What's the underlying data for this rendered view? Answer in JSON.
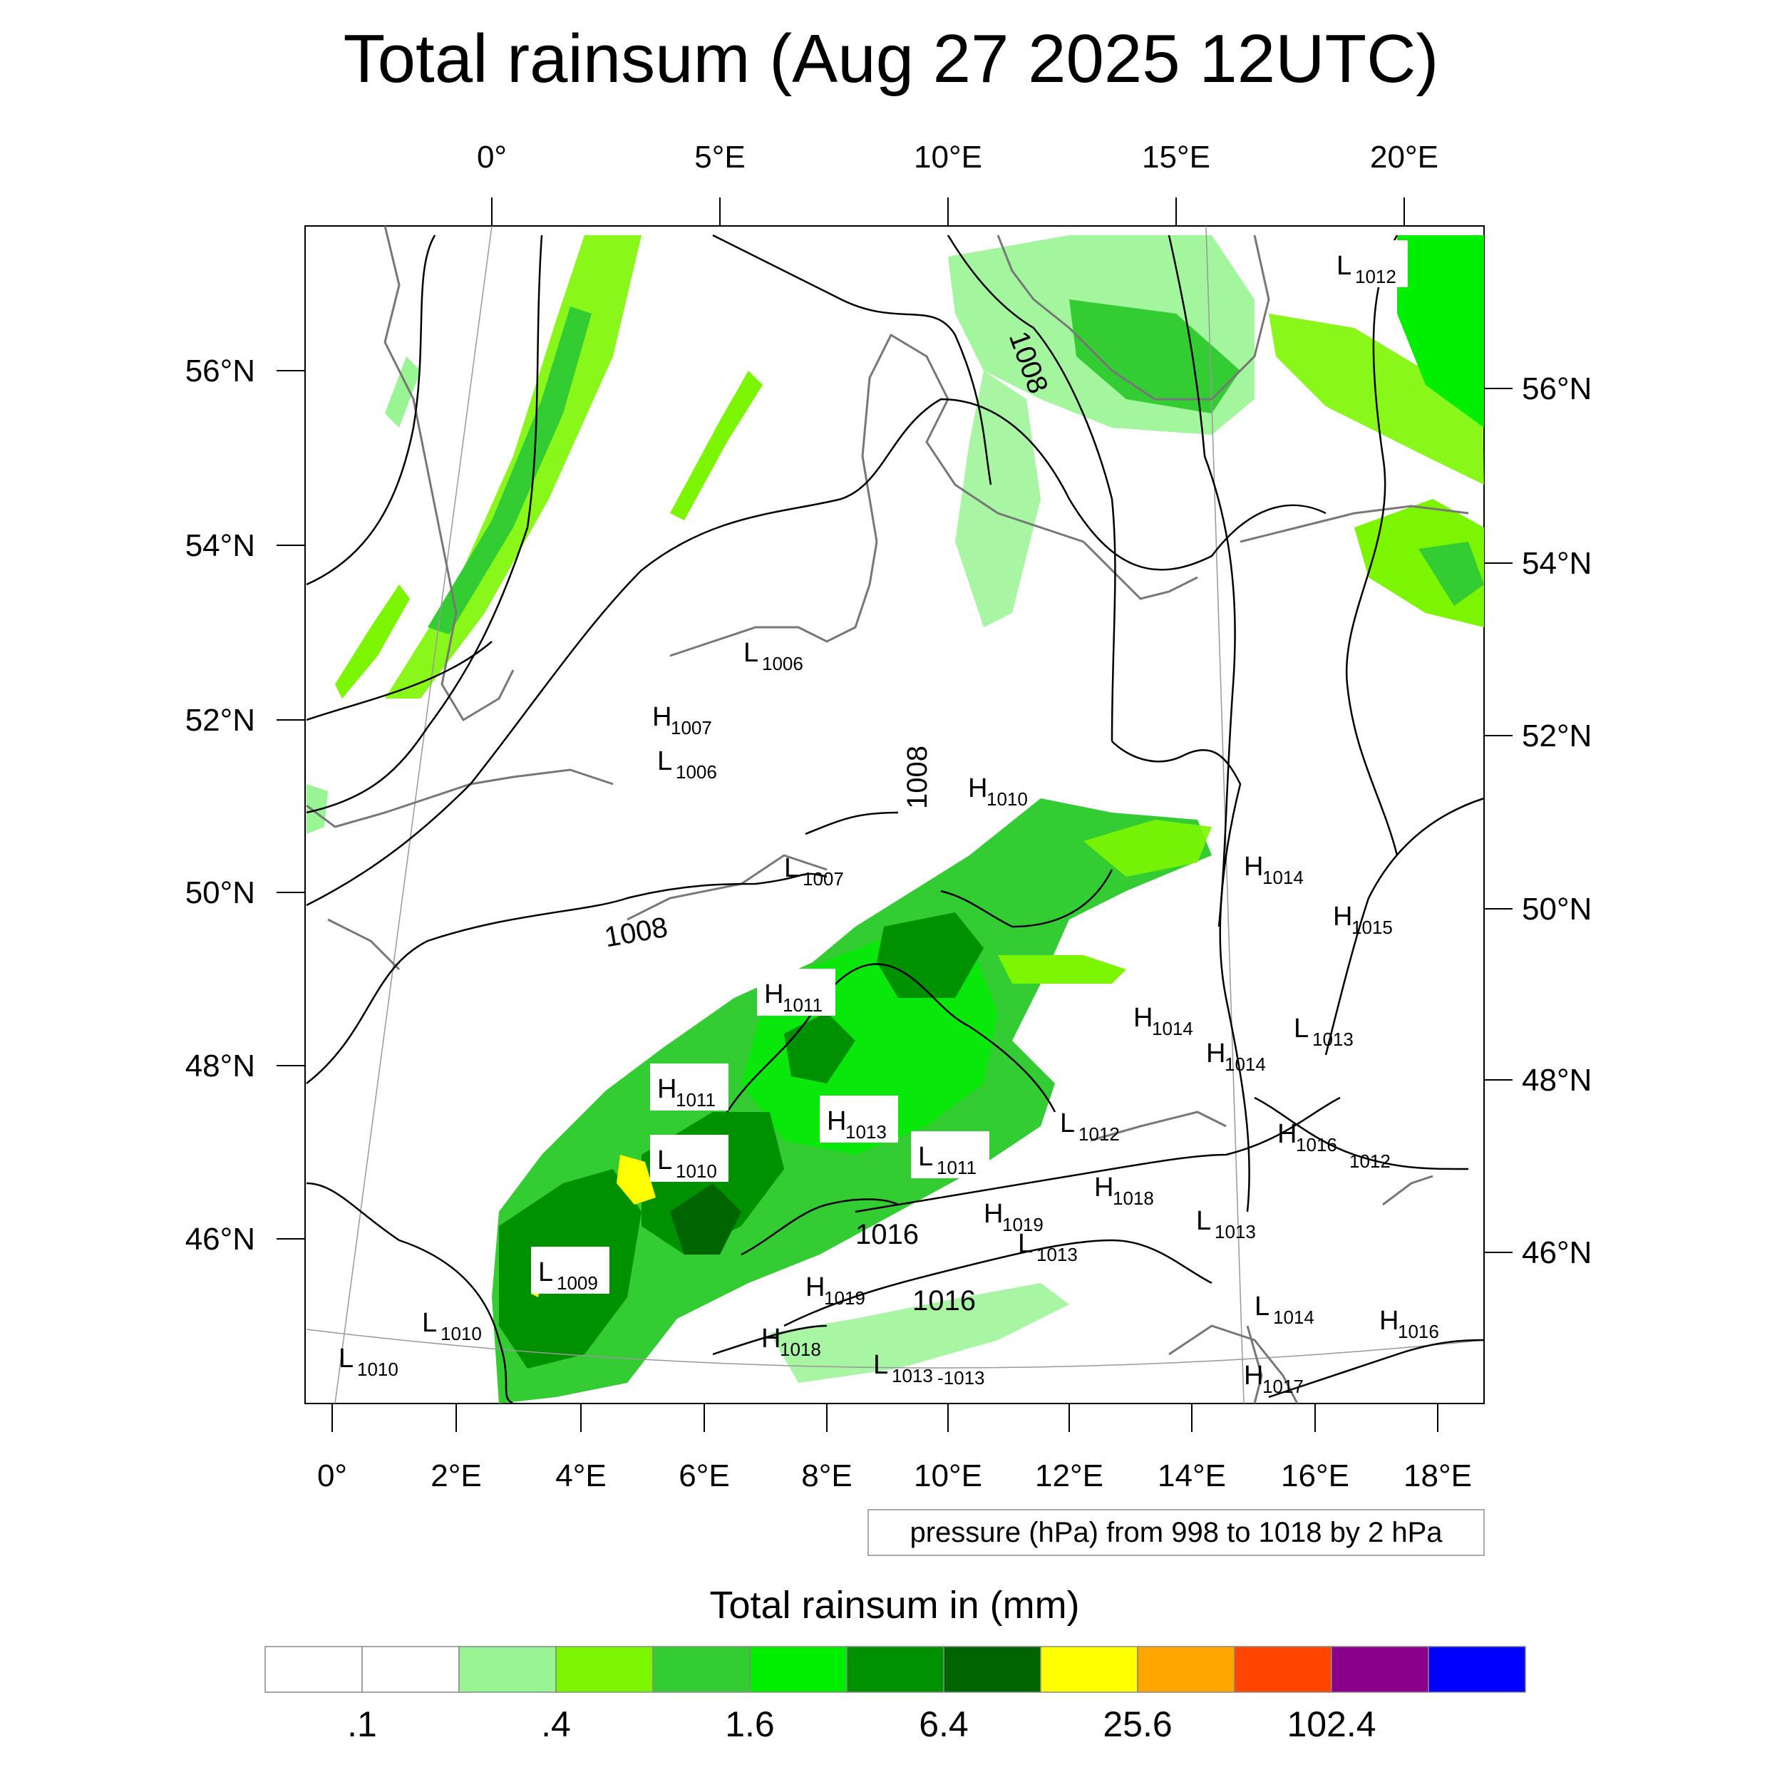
{
  "title": "Total rainsum (Aug 27 2025 12UTC)",
  "map": {
    "region": "Western and Central Europe",
    "projection": "conic",
    "top_lon_labels": [
      "0°",
      "5°E",
      "10°E",
      "15°E",
      "20°E"
    ],
    "bottom_lon_labels": [
      "0°",
      "2°E",
      "4°E",
      "6°E",
      "8°E",
      "10°E",
      "12°E",
      "14°E",
      "16°E",
      "18°E"
    ],
    "left_lat_labels": [
      "56°N",
      "54°N",
      "52°N",
      "50°N",
      "48°N",
      "46°N"
    ],
    "right_lat_labels": [
      "56°N",
      "54°N",
      "52°N",
      "50°N",
      "48°N",
      "46°N"
    ]
  },
  "pressure_centers": [
    {
      "type": "L",
      "value": "1012"
    },
    {
      "type": "L",
      "value": "1006"
    },
    {
      "type": "H",
      "value": "1007"
    },
    {
      "type": "L",
      "value": "1006"
    },
    {
      "type": "H",
      "value": "1010"
    },
    {
      "type": "L",
      "value": "1007"
    },
    {
      "type": "H",
      "value": "1014"
    },
    {
      "type": "H",
      "value": "1015"
    },
    {
      "type": "H",
      "value": "1011"
    },
    {
      "type": "H",
      "value": "1014"
    },
    {
      "type": "H",
      "value": "1014"
    },
    {
      "type": "L",
      "value": "1013"
    },
    {
      "type": "H",
      "value": "1011"
    },
    {
      "type": "H",
      "value": "1013"
    },
    {
      "type": "L",
      "value": "1012"
    },
    {
      "type": "L",
      "value": "1010"
    },
    {
      "type": "L",
      "value": "1011"
    },
    {
      "type": "H",
      "value": "1016"
    },
    {
      "type": "H",
      "value": "1018"
    },
    {
      "type": "H",
      "value": "1019"
    },
    {
      "type": "L",
      "value": "1013"
    },
    {
      "type": "L",
      "value": "1013"
    },
    {
      "type": "L",
      "value": "1009"
    },
    {
      "type": "H",
      "value": "1019"
    },
    {
      "type": "L",
      "value": "1014"
    },
    {
      "type": "H",
      "value": "1016"
    },
    {
      "type": "L",
      "value": "1010"
    },
    {
      "type": "L",
      "value": "1010"
    },
    {
      "type": "H",
      "value": "1018"
    },
    {
      "type": "L",
      "value": "1013"
    },
    {
      "type": "H",
      "value": "1017"
    }
  ],
  "contour_labels": [
    "1008",
    "1008",
    "1008",
    "1016",
    "1016",
    "1012",
    "-1013"
  ],
  "contour_note": "pressure (hPa) from 998 to 1018 by 2 hPa",
  "colorbar": {
    "title": "Total rainsum in (mm)",
    "labels": [
      ".1",
      ".4",
      "1.6",
      "6.4",
      "25.6",
      "102.4"
    ],
    "colors": [
      "#ffffff",
      "#ffffff",
      "#99f593",
      "#7cf600",
      "#33cc33",
      "#00ee00",
      "#009100",
      "#006400",
      "#ffff00",
      "#ffa500",
      "#ff4500",
      "#8b008b",
      "#0000ff"
    ]
  }
}
